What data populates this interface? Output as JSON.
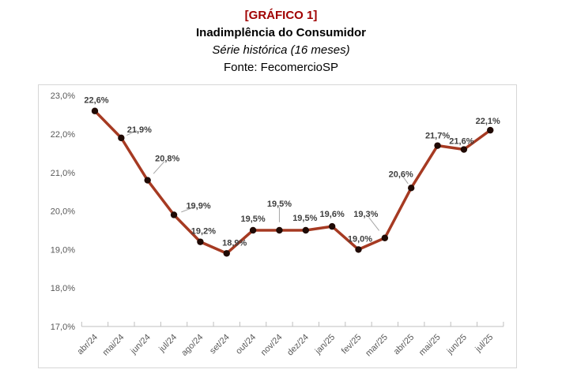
{
  "header": {
    "tag": "[GRÁFICO 1]",
    "tag_color": "#A00000",
    "title": "Inadimplência do Consumidor",
    "subtitle": "Série histórica (16 meses)",
    "source": "Fonte: FecomercioSP"
  },
  "chart_data": {
    "type": "line",
    "title": "Inadimplência do Consumidor",
    "subtitle": "Série histórica (16 meses)",
    "source": "Fonte: FecomercioSP",
    "categories": [
      "abr/24",
      "mai/24",
      "jun/24",
      "jul/24",
      "ago/24",
      "set/24",
      "out/24",
      "nov/24",
      "dez/24",
      "jan/25",
      "fev/25",
      "mar/25",
      "abr/25",
      "mai/25",
      "jun/25",
      "jul/25"
    ],
    "values": [
      22.6,
      21.9,
      20.8,
      19.9,
      19.2,
      18.9,
      19.5,
      19.5,
      19.5,
      19.6,
      19.0,
      19.3,
      20.6,
      21.7,
      21.6,
      22.1
    ],
    "point_labels": [
      "22,6%",
      "21,9%",
      "20,8%",
      "19,9%",
      "19,2%",
      "18,9%",
      "19,5%",
      "19,5%",
      "19,5%",
      "19,6%",
      "19,0%",
      "19,3%",
      "20,6%",
      "21,7%",
      "21,6%",
      "22,1%"
    ],
    "y_tick_labels": [
      "23,0%",
      "22,0%",
      "21,0%",
      "20,0%",
      "19,0%",
      "18,0%",
      "17,0%"
    ],
    "ylim": [
      17.0,
      23.0
    ],
    "y_step": 1.0,
    "grid": false,
    "legend": "none",
    "colors": {
      "line": "#A63A22",
      "marker": "#200A04",
      "data_label": "#3F3F3F",
      "axis_label": "#595959",
      "axis_line": "#BFBFBF",
      "leader_line": "#A6A6A6",
      "chart_border": "#D6D6D6"
    }
  }
}
